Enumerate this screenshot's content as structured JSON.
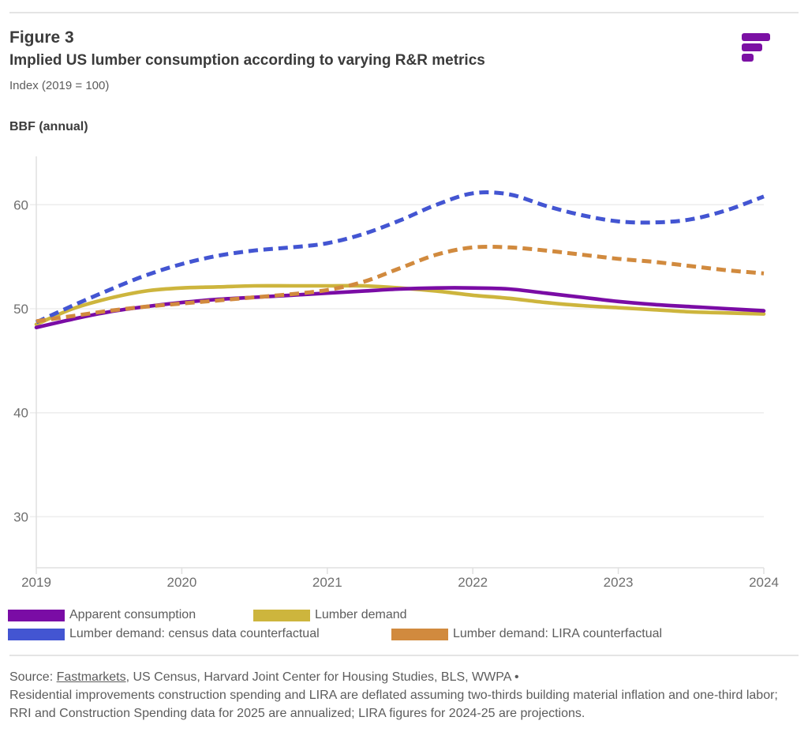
{
  "header": {
    "figure_label": "Figure 3",
    "title": "Implied US lumber consumption according to varying R&R metrics",
    "index_note": "Index (2019 = 100)",
    "axis_unit_label": "BBF (annual)"
  },
  "logo": {
    "name": "Fastmarkets logo",
    "color": "#7B10A4"
  },
  "chart_data": {
    "type": "line",
    "title": "Implied US lumber consumption according to varying R&R metrics",
    "ylabel": "BBF (annual)",
    "index_note": "Index (2019 = 100)",
    "xlim": [
      2019,
      2024
    ],
    "ylim": [
      25,
      64.5
    ],
    "x_ticks": [
      "2019",
      "2020",
      "2021",
      "2022",
      "2023",
      "2024"
    ],
    "y_ticks": [
      60,
      50,
      40,
      30
    ],
    "grid": "horizontal",
    "legend_position": "bottom",
    "x": [
      2019,
      2019.25,
      2019.5,
      2019.75,
      2020,
      2020.25,
      2020.5,
      2020.75,
      2021,
      2021.25,
      2021.5,
      2021.75,
      2022,
      2022.25,
      2022.5,
      2022.75,
      2023,
      2023.25,
      2023.5,
      2023.75,
      2024
    ],
    "series": [
      {
        "name": "Apparent consumption",
        "color": "#7A0CA5",
        "style": "solid",
        "values": [
          48.2,
          49.0,
          49.7,
          50.2,
          50.6,
          50.9,
          51.1,
          51.3,
          51.5,
          51.7,
          51.9,
          52.0,
          52.0,
          51.9,
          51.5,
          51.1,
          50.7,
          50.4,
          50.2,
          50.0,
          49.8
        ]
      },
      {
        "name": "Lumber demand",
        "color": "#CDB53D",
        "style": "solid",
        "values": [
          48.5,
          50.0,
          51.0,
          51.7,
          52.0,
          52.1,
          52.2,
          52.2,
          52.2,
          52.2,
          52.0,
          51.7,
          51.3,
          51.0,
          50.6,
          50.3,
          50.1,
          49.9,
          49.7,
          49.6,
          49.5
        ]
      },
      {
        "name": "Lumber demand: census data counterfactual",
        "color": "#4355D2",
        "style": "dashed",
        "values": [
          48.7,
          50.3,
          51.8,
          53.2,
          54.3,
          55.1,
          55.6,
          55.9,
          56.3,
          57.2,
          58.5,
          60.0,
          61.1,
          61.0,
          59.9,
          59.0,
          58.4,
          58.3,
          58.6,
          59.5,
          60.8
        ]
      },
      {
        "name": "Lumber demand: LIRA counterfactual",
        "color": "#D18A3E",
        "style": "dashed",
        "values": [
          48.8,
          49.3,
          49.8,
          50.2,
          50.5,
          50.8,
          51.1,
          51.4,
          51.8,
          52.6,
          53.9,
          55.2,
          55.9,
          55.9,
          55.6,
          55.2,
          54.8,
          54.5,
          54.1,
          53.7,
          53.4
        ]
      }
    ]
  },
  "footer": {
    "source_prefix": "Source: ",
    "source_link": "Fastmarkets",
    "source_suffix": ", US Census, Harvard Joint Center for Housing Studies, BLS, WWPA •",
    "note": "Residential improvements construction spending and LIRA are deflated assuming two-thirds building material inflation and one-third labor; RRI and Construction Spending data for 2025 are annualized; LIRA figures for 2024-25 are projections."
  }
}
